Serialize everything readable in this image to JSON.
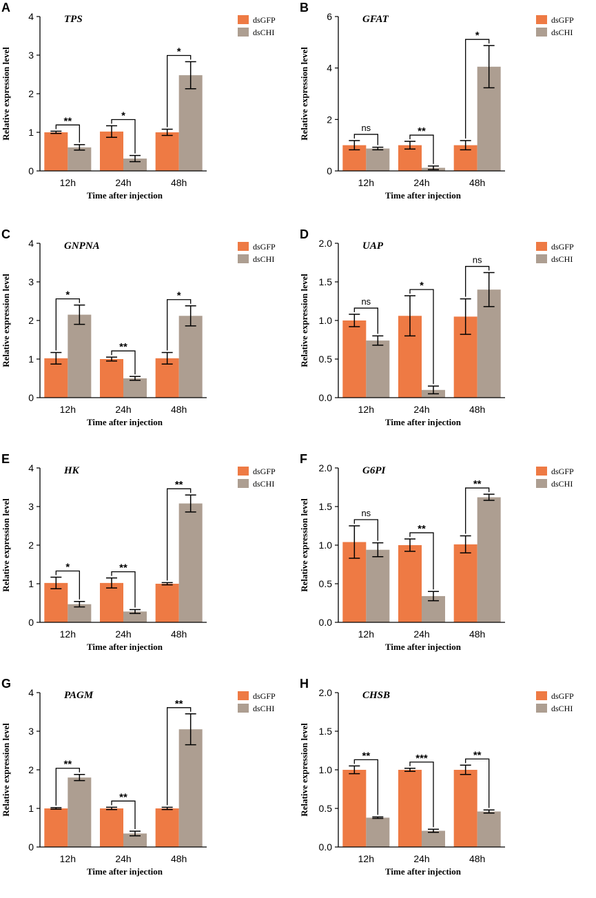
{
  "colors": {
    "dsGFP": "#EE7A44",
    "dsCHI": "#AD9E91",
    "axis": "#000000"
  },
  "common": {
    "xlabel": "Time after injection",
    "ylabel": "Relative expression level",
    "categories": [
      "12h",
      "24h",
      "48h"
    ],
    "legend": [
      "dsGFP",
      "dsCHI"
    ]
  },
  "chart_data": [
    {
      "type": "bar",
      "panel_label": "A",
      "title": "TPS",
      "xlabel": "Time after injection",
      "ylabel": "Relative expression level",
      "categories": [
        "12h",
        "24h",
        "48h"
      ],
      "ylim": [
        0,
        4
      ],
      "yticks": [
        "0",
        "1",
        "2",
        "3",
        "4"
      ],
      "series": [
        {
          "name": "dsGFP",
          "values": [
            1.0,
            1.02,
            1.0
          ],
          "errors": [
            0.03,
            0.15,
            0.08
          ]
        },
        {
          "name": "dsCHI",
          "values": [
            0.61,
            0.32,
            2.48
          ],
          "errors": [
            0.07,
            0.08,
            0.35
          ]
        }
      ],
      "significance": [
        "**",
        "*",
        "*"
      ]
    },
    {
      "type": "bar",
      "panel_label": "B",
      "title": "GFAT",
      "xlabel": "Time after injection",
      "ylabel": "Relative expression level",
      "categories": [
        "12h",
        "24h",
        "48h"
      ],
      "ylim": [
        0,
        6
      ],
      "yticks": [
        "0",
        "2",
        "4",
        "6"
      ],
      "series": [
        {
          "name": "dsGFP",
          "values": [
            1.0,
            1.0,
            1.0
          ],
          "errors": [
            0.18,
            0.15,
            0.18
          ]
        },
        {
          "name": "dsCHI",
          "values": [
            0.87,
            0.12,
            4.05
          ],
          "errors": [
            0.05,
            0.07,
            0.82
          ]
        }
      ],
      "significance": [
        "ns",
        "**",
        "*"
      ]
    },
    {
      "type": "bar",
      "panel_label": "C",
      "title": "GNPNA",
      "xlabel": "Time after injection",
      "ylabel": "Relative expression level",
      "categories": [
        "12h",
        "24h",
        "48h"
      ],
      "ylim": [
        0,
        4
      ],
      "yticks": [
        "0",
        "1",
        "2",
        "3",
        "4"
      ],
      "series": [
        {
          "name": "dsGFP",
          "values": [
            1.02,
            1.0,
            1.02
          ],
          "errors": [
            0.15,
            0.05,
            0.15
          ]
        },
        {
          "name": "dsCHI",
          "values": [
            2.15,
            0.5,
            2.12
          ],
          "errors": [
            0.25,
            0.05,
            0.26
          ]
        }
      ],
      "significance": [
        "*",
        "**",
        "*"
      ]
    },
    {
      "type": "bar",
      "panel_label": "D",
      "title": "UAP",
      "xlabel": "Time after injection",
      "ylabel": "Relative expression level",
      "categories": [
        "12h",
        "24h",
        "48h"
      ],
      "ylim": [
        0,
        2.0
      ],
      "yticks": [
        "0.0",
        "0.5",
        "1.0",
        "1.5",
        "2.0"
      ],
      "series": [
        {
          "name": "dsGFP",
          "values": [
            1.0,
            1.06,
            1.05
          ],
          "errors": [
            0.08,
            0.26,
            0.23
          ]
        },
        {
          "name": "dsCHI",
          "values": [
            0.74,
            0.1,
            1.4
          ],
          "errors": [
            0.06,
            0.05,
            0.22
          ]
        }
      ],
      "significance": [
        "ns",
        "*",
        "ns"
      ]
    },
    {
      "type": "bar",
      "panel_label": "E",
      "title": "HK",
      "xlabel": "Time after injection",
      "ylabel": "Relative expression level",
      "categories": [
        "12h",
        "24h",
        "48h"
      ],
      "ylim": [
        0,
        4
      ],
      "yticks": [
        "0",
        "1",
        "2",
        "3",
        "4"
      ],
      "series": [
        {
          "name": "dsGFP",
          "values": [
            1.02,
            1.02,
            1.0
          ],
          "errors": [
            0.15,
            0.13,
            0.03
          ]
        },
        {
          "name": "dsCHI",
          "values": [
            0.47,
            0.28,
            3.08
          ],
          "errors": [
            0.07,
            0.05,
            0.22
          ]
        }
      ],
      "significance": [
        "*",
        "**",
        "**"
      ]
    },
    {
      "type": "bar",
      "panel_label": "F",
      "title": "G6PI",
      "xlabel": "Time after injection",
      "ylabel": "Relative expression level",
      "categories": [
        "12h",
        "24h",
        "48h"
      ],
      "ylim": [
        0,
        2.0
      ],
      "yticks": [
        "0.0",
        "0.5",
        "1.0",
        "1.5",
        "2.0"
      ],
      "series": [
        {
          "name": "dsGFP",
          "values": [
            1.04,
            1.0,
            1.01
          ],
          "errors": [
            0.21,
            0.08,
            0.11
          ]
        },
        {
          "name": "dsCHI",
          "values": [
            0.94,
            0.34,
            1.62
          ],
          "errors": [
            0.09,
            0.06,
            0.04
          ]
        }
      ],
      "significance": [
        "ns",
        "**",
        "**"
      ]
    },
    {
      "type": "bar",
      "panel_label": "G",
      "title": "PAGM",
      "xlabel": "Time after injection",
      "ylabel": "Relative expression level",
      "categories": [
        "12h",
        "24h",
        "48h"
      ],
      "ylim": [
        0,
        4
      ],
      "yticks": [
        "0",
        "1",
        "2",
        "3",
        "4"
      ],
      "series": [
        {
          "name": "dsGFP",
          "values": [
            1.0,
            1.0,
            1.0
          ],
          "errors": [
            0.02,
            0.03,
            0.03
          ]
        },
        {
          "name": "dsCHI",
          "values": [
            1.8,
            0.35,
            3.05
          ],
          "errors": [
            0.08,
            0.06,
            0.4
          ]
        }
      ],
      "significance": [
        "**",
        "**",
        "**"
      ]
    },
    {
      "type": "bar",
      "panel_label": "H",
      "title": "CHSB",
      "xlabel": "Time after injection",
      "ylabel": "Relative expression level",
      "categories": [
        "12h",
        "24h",
        "48h"
      ],
      "ylim": [
        0,
        2.0
      ],
      "yticks": [
        "0.0",
        "0.5",
        "1.0",
        "1.5",
        "2.0"
      ],
      "series": [
        {
          "name": "dsGFP",
          "values": [
            1.0,
            1.0,
            1.0
          ],
          "errors": [
            0.05,
            0.02,
            0.06
          ]
        },
        {
          "name": "dsCHI",
          "values": [
            0.38,
            0.21,
            0.46
          ],
          "errors": [
            0.01,
            0.02,
            0.02
          ]
        }
      ],
      "significance": [
        "**",
        "***",
        "**"
      ]
    }
  ]
}
